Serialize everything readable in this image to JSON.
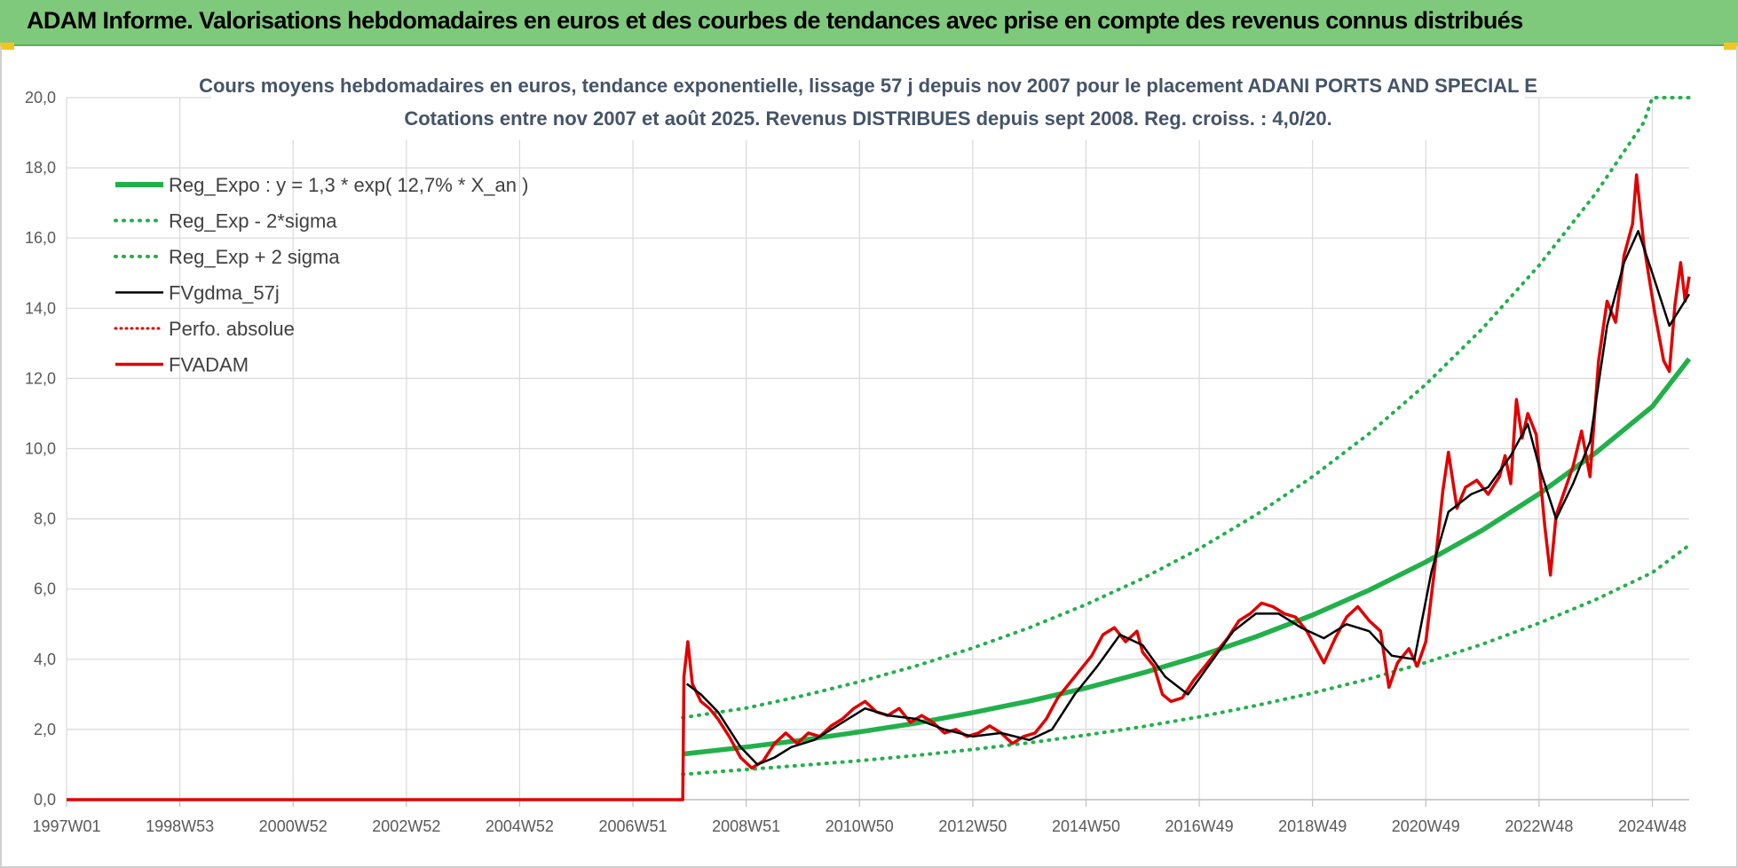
{
  "banner": {
    "title": "ADAM Informe. Valorisations hebdomadaires en euros et des courbes de tendances avec prise en compte des revenus connus distribués"
  },
  "colors": {
    "banner": "#7fc97c",
    "reg_expo": "#22b04b",
    "sigma": "#22b04b",
    "fvgdma": "#000000",
    "perfo": "#e00000",
    "fvadam": "#e00000",
    "grid": "#d9d9d9"
  },
  "chart_data": {
    "type": "line",
    "title_line1": "Cours moyens hebdomadaires en euros, tendance exponentielle, lissage 57 j depuis nov 2007 pour le placement ADANI PORTS AND SPECIAL E",
    "title_line2": "Cotations entre nov 2007 et août 2025. Revenus DISTRIBUES depuis sept 2008. Reg. croiss. : 4,0/20.",
    "x_domain": [
      1997.0,
      2025.65
    ],
    "ylim": [
      0,
      20
    ],
    "y_ticks": [
      "0,0",
      "2,0",
      "4,0",
      "6,0",
      "8,0",
      "10,0",
      "12,0",
      "14,0",
      "16,0",
      "18,0",
      "20,0"
    ],
    "x_ticks": [
      {
        "label": "1997W01",
        "x": 1997.0
      },
      {
        "label": "1998W53",
        "x": 1999.0
      },
      {
        "label": "2000W52",
        "x": 2001.0
      },
      {
        "label": "2002W52",
        "x": 2003.0
      },
      {
        "label": "2004W52",
        "x": 2005.0
      },
      {
        "label": "2006W51",
        "x": 2007.0
      },
      {
        "label": "2008W51",
        "x": 2009.0
      },
      {
        "label": "2010W50",
        "x": 2011.0
      },
      {
        "label": "2012W50",
        "x": 2013.0
      },
      {
        "label": "2014W50",
        "x": 2015.0
      },
      {
        "label": "2016W49",
        "x": 2017.0
      },
      {
        "label": "2018W49",
        "x": 2019.0
      },
      {
        "label": "2020W49",
        "x": 2021.0
      },
      {
        "label": "2022W48",
        "x": 2023.0
      },
      {
        "label": "2024W48",
        "x": 2025.0
      }
    ],
    "legend": [
      {
        "label": "Reg_Expo : y = 1,3 * exp( 12,7% *  X_an )",
        "key": "reg",
        "style": "solid-thick"
      },
      {
        "label": "Reg_Exp - 2*sigma",
        "key": "low",
        "style": "dotted-green"
      },
      {
        "label": "Reg_Exp + 2 sigma",
        "key": "high",
        "style": "dotted-green"
      },
      {
        "label": "FVgdma_57j",
        "key": "gdma",
        "style": "solid-black"
      },
      {
        "label": "Perfo. absolue",
        "key": "perfo",
        "style": "dotted-red"
      },
      {
        "label": "FVADAM",
        "key": "fvadam",
        "style": "solid-red"
      }
    ],
    "series": [
      {
        "name": "Reg_Expo : y = 1,3 * exp( 12,7% *  X_an )",
        "points": [
          [
            2007.88,
            1.3
          ],
          [
            2009,
            1.5
          ],
          [
            2010,
            1.7
          ],
          [
            2011,
            1.93
          ],
          [
            2012,
            2.18
          ],
          [
            2013,
            2.48
          ],
          [
            2014,
            2.81
          ],
          [
            2015,
            3.18
          ],
          [
            2016,
            3.61
          ],
          [
            2017,
            4.09
          ],
          [
            2018,
            4.64
          ],
          [
            2019,
            5.26
          ],
          [
            2020,
            5.97
          ],
          [
            2021,
            6.77
          ],
          [
            2022,
            7.68
          ],
          [
            2023,
            8.71
          ],
          [
            2024,
            9.88
          ],
          [
            2025,
            11.2
          ],
          [
            2025.65,
            12.56
          ]
        ]
      },
      {
        "name": "Reg_Exp - 2*sigma",
        "points": [
          [
            2007.88,
            0.72
          ],
          [
            2009,
            0.86
          ],
          [
            2010,
            0.98
          ],
          [
            2011,
            1.11
          ],
          [
            2012,
            1.26
          ],
          [
            2013,
            1.43
          ],
          [
            2014,
            1.62
          ],
          [
            2015,
            1.84
          ],
          [
            2016,
            2.08
          ],
          [
            2017,
            2.36
          ],
          [
            2018,
            2.68
          ],
          [
            2019,
            3.04
          ],
          [
            2020,
            3.44
          ],
          [
            2021,
            3.91
          ],
          [
            2022,
            4.43
          ],
          [
            2023,
            5.03
          ],
          [
            2024,
            5.7
          ],
          [
            2025,
            6.47
          ],
          [
            2025.65,
            7.25
          ]
        ]
      },
      {
        "name": "Reg_Exp + 2 sigma",
        "points": [
          [
            2007.88,
            2.34
          ],
          [
            2009,
            2.61
          ],
          [
            2010,
            2.96
          ],
          [
            2011,
            3.36
          ],
          [
            2012,
            3.81
          ],
          [
            2013,
            4.32
          ],
          [
            2014,
            4.9
          ],
          [
            2015,
            5.56
          ],
          [
            2016,
            6.3
          ],
          [
            2017,
            7.15
          ],
          [
            2018,
            8.11
          ],
          [
            2019,
            9.2
          ],
          [
            2020,
            10.43
          ],
          [
            2021,
            11.83
          ],
          [
            2022,
            13.42
          ],
          [
            2023,
            15.22
          ],
          [
            2024,
            17.27
          ],
          [
            2024.85,
            19.3
          ],
          [
            2025.0,
            20.0
          ],
          [
            2025.65,
            20.0
          ]
        ]
      },
      {
        "name": "FVgdma_57j",
        "points": [
          [
            2007.95,
            3.3
          ],
          [
            2008.2,
            3.0
          ],
          [
            2008.5,
            2.5
          ],
          [
            2008.9,
            1.5
          ],
          [
            2009.2,
            1.0
          ],
          [
            2009.5,
            1.2
          ],
          [
            2009.8,
            1.5
          ],
          [
            2010.2,
            1.7
          ],
          [
            2010.7,
            2.2
          ],
          [
            2011.1,
            2.6
          ],
          [
            2011.5,
            2.4
          ],
          [
            2012.0,
            2.3
          ],
          [
            2012.5,
            2.0
          ],
          [
            2013.0,
            1.8
          ],
          [
            2013.5,
            1.9
          ],
          [
            2014.0,
            1.7
          ],
          [
            2014.4,
            2.0
          ],
          [
            2014.8,
            3.0
          ],
          [
            2015.2,
            3.8
          ],
          [
            2015.6,
            4.7
          ],
          [
            2016.0,
            4.4
          ],
          [
            2016.4,
            3.5
          ],
          [
            2016.8,
            3.0
          ],
          [
            2017.2,
            3.9
          ],
          [
            2017.6,
            4.8
          ],
          [
            2018.0,
            5.3
          ],
          [
            2018.4,
            5.3
          ],
          [
            2018.8,
            4.9
          ],
          [
            2019.2,
            4.6
          ],
          [
            2019.6,
            5.0
          ],
          [
            2020.0,
            4.8
          ],
          [
            2020.4,
            4.1
          ],
          [
            2020.8,
            4.0
          ],
          [
            2021.1,
            6.5
          ],
          [
            2021.4,
            8.2
          ],
          [
            2021.8,
            8.7
          ],
          [
            2022.1,
            8.9
          ],
          [
            2022.5,
            9.8
          ],
          [
            2022.8,
            10.7
          ],
          [
            2023.0,
            9.5
          ],
          [
            2023.3,
            8.0
          ],
          [
            2023.6,
            9.0
          ],
          [
            2023.9,
            10.2
          ],
          [
            2024.2,
            13.5
          ],
          [
            2024.5,
            15.3
          ],
          [
            2024.75,
            16.2
          ],
          [
            2025.0,
            15.0
          ],
          [
            2025.3,
            13.5
          ],
          [
            2025.65,
            14.4
          ]
        ]
      },
      {
        "name": "FVADAM",
        "points": [
          [
            1997.0,
            0
          ],
          [
            2007.88,
            0
          ],
          [
            2007.9,
            3.5
          ],
          [
            2007.97,
            4.5
          ],
          [
            2008.05,
            3.3
          ],
          [
            2008.2,
            2.8
          ],
          [
            2008.35,
            2.6
          ],
          [
            2008.5,
            2.3
          ],
          [
            2008.7,
            1.8
          ],
          [
            2008.9,
            1.2
          ],
          [
            2009.1,
            0.9
          ],
          [
            2009.3,
            1.1
          ],
          [
            2009.5,
            1.6
          ],
          [
            2009.7,
            1.9
          ],
          [
            2009.9,
            1.6
          ],
          [
            2010.1,
            1.9
          ],
          [
            2010.3,
            1.8
          ],
          [
            2010.5,
            2.1
          ],
          [
            2010.7,
            2.3
          ],
          [
            2010.9,
            2.6
          ],
          [
            2011.1,
            2.8
          ],
          [
            2011.3,
            2.5
          ],
          [
            2011.5,
            2.4
          ],
          [
            2011.7,
            2.6
          ],
          [
            2011.9,
            2.2
          ],
          [
            2012.1,
            2.4
          ],
          [
            2012.3,
            2.2
          ],
          [
            2012.5,
            1.9
          ],
          [
            2012.7,
            2.0
          ],
          [
            2012.9,
            1.8
          ],
          [
            2013.1,
            1.9
          ],
          [
            2013.3,
            2.1
          ],
          [
            2013.5,
            1.9
          ],
          [
            2013.7,
            1.6
          ],
          [
            2013.9,
            1.8
          ],
          [
            2014.1,
            1.9
          ],
          [
            2014.3,
            2.3
          ],
          [
            2014.5,
            2.9
          ],
          [
            2014.7,
            3.3
          ],
          [
            2014.9,
            3.7
          ],
          [
            2015.1,
            4.1
          ],
          [
            2015.3,
            4.7
          ],
          [
            2015.5,
            4.9
          ],
          [
            2015.7,
            4.5
          ],
          [
            2015.9,
            4.8
          ],
          [
            2016.0,
            4.2
          ],
          [
            2016.2,
            3.8
          ],
          [
            2016.35,
            3.0
          ],
          [
            2016.5,
            2.8
          ],
          [
            2016.7,
            2.9
          ],
          [
            2016.9,
            3.4
          ],
          [
            2017.1,
            3.8
          ],
          [
            2017.3,
            4.2
          ],
          [
            2017.5,
            4.6
          ],
          [
            2017.7,
            5.1
          ],
          [
            2017.9,
            5.3
          ],
          [
            2018.1,
            5.6
          ],
          [
            2018.3,
            5.5
          ],
          [
            2018.5,
            5.3
          ],
          [
            2018.7,
            5.2
          ],
          [
            2018.9,
            4.8
          ],
          [
            2019.1,
            4.2
          ],
          [
            2019.2,
            3.9
          ],
          [
            2019.4,
            4.6
          ],
          [
            2019.6,
            5.2
          ],
          [
            2019.8,
            5.5
          ],
          [
            2020.0,
            5.1
          ],
          [
            2020.2,
            4.8
          ],
          [
            2020.35,
            3.2
          ],
          [
            2020.5,
            3.9
          ],
          [
            2020.7,
            4.3
          ],
          [
            2020.85,
            3.8
          ],
          [
            2021.0,
            4.5
          ],
          [
            2021.15,
            6.5
          ],
          [
            2021.3,
            8.8
          ],
          [
            2021.4,
            9.9
          ],
          [
            2021.55,
            8.3
          ],
          [
            2021.7,
            8.9
          ],
          [
            2021.9,
            9.1
          ],
          [
            2022.1,
            8.7
          ],
          [
            2022.3,
            9.2
          ],
          [
            2022.4,
            9.8
          ],
          [
            2022.5,
            9.0
          ],
          [
            2022.6,
            11.4
          ],
          [
            2022.7,
            10.3
          ],
          [
            2022.8,
            11.0
          ],
          [
            2022.95,
            10.4
          ],
          [
            2023.1,
            7.8
          ],
          [
            2023.2,
            6.4
          ],
          [
            2023.3,
            8.1
          ],
          [
            2023.45,
            8.8
          ],
          [
            2023.6,
            9.5
          ],
          [
            2023.75,
            10.5
          ],
          [
            2023.9,
            9.2
          ],
          [
            2024.05,
            12.5
          ],
          [
            2024.2,
            14.2
          ],
          [
            2024.35,
            13.6
          ],
          [
            2024.5,
            15.5
          ],
          [
            2024.65,
            16.4
          ],
          [
            2024.72,
            17.8
          ],
          [
            2024.85,
            15.8
          ],
          [
            2024.95,
            14.8
          ],
          [
            2025.05,
            13.8
          ],
          [
            2025.2,
            12.5
          ],
          [
            2025.3,
            12.2
          ],
          [
            2025.4,
            14.1
          ],
          [
            2025.5,
            15.3
          ],
          [
            2025.58,
            14.2
          ],
          [
            2025.65,
            14.9
          ]
        ]
      }
    ]
  }
}
